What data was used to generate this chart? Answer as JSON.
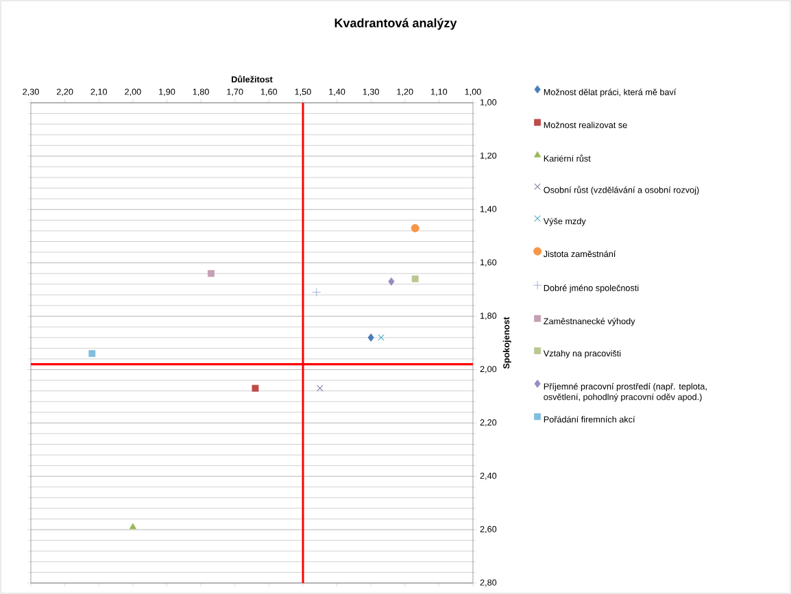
{
  "chart_data": {
    "type": "scatter",
    "title": "Kvadrantová analýzy",
    "xlabel": "Důležitost",
    "ylabel": "Spokojenost",
    "xlim": [
      2.3,
      1.0
    ],
    "ylim": [
      2.8,
      1.0
    ],
    "xticks": [
      {
        "value": 2.3,
        "label": "2,30"
      },
      {
        "value": 2.2,
        "label": "2,20"
      },
      {
        "value": 2.1,
        "label": "2,10"
      },
      {
        "value": 2.0,
        "label": "2,00"
      },
      {
        "value": 1.9,
        "label": "1,90"
      },
      {
        "value": 1.8,
        "label": "1,80"
      },
      {
        "value": 1.7,
        "label": "1,70"
      },
      {
        "value": 1.6,
        "label": "1,60"
      },
      {
        "value": 1.5,
        "label": "1,50"
      },
      {
        "value": 1.4,
        "label": "1,40"
      },
      {
        "value": 1.3,
        "label": "1,30"
      },
      {
        "value": 1.2,
        "label": "1,20"
      },
      {
        "value": 1.1,
        "label": "1,10"
      },
      {
        "value": 1.0,
        "label": "1,00"
      }
    ],
    "yticks": [
      {
        "value": 1.0,
        "label": "1,00"
      },
      {
        "value": 1.2,
        "label": "1,20"
      },
      {
        "value": 1.4,
        "label": "1,40"
      },
      {
        "value": 1.6,
        "label": "1,60"
      },
      {
        "value": 1.8,
        "label": "1,80"
      },
      {
        "value": 2.0,
        "label": "2,00"
      },
      {
        "value": 2.2,
        "label": "2,20"
      },
      {
        "value": 2.4,
        "label": "2,40"
      },
      {
        "value": 2.6,
        "label": "2,60"
      },
      {
        "value": 2.8,
        "label": "2,80"
      }
    ],
    "grid": "y",
    "legend": "right",
    "ref_lines": [
      {
        "axis": "x",
        "value": 1.5,
        "color": "#ff0000"
      },
      {
        "axis": "y",
        "value": 1.98,
        "color": "#ff0000"
      }
    ],
    "series": [
      {
        "name": "Možnost dělat práci, která mě baví",
        "color": "#4a7ebb",
        "marker": "diamond",
        "x": [
          1.3
        ],
        "values": [
          1.88
        ]
      },
      {
        "name": "Možnost realizovat se",
        "color": "#be4b48",
        "marker": "square",
        "x": [
          1.64
        ],
        "values": [
          2.07
        ]
      },
      {
        "name": "Kariérní růst",
        "color": "#98b954",
        "marker": "triangle",
        "x": [
          2.0
        ],
        "values": [
          2.59
        ]
      },
      {
        "name": "Osobní růst (vzdělávání a osobní rozvoj)",
        "color": "#7f7f9f",
        "marker": "cross",
        "x": [
          1.45
        ],
        "values": [
          2.07
        ]
      },
      {
        "name": "Výše mzdy",
        "color": "#4bacc6",
        "marker": "cross",
        "x": [
          1.27
        ],
        "values": [
          1.88
        ]
      },
      {
        "name": "Jistota zaměstnání",
        "color": "#f79646",
        "marker": "circle",
        "x": [
          1.17
        ],
        "values": [
          1.47
        ]
      },
      {
        "name": "Dobré jméno společnosti",
        "color": "#8c9bd0",
        "marker": "plus",
        "x": [
          1.46
        ],
        "values": [
          1.71
        ]
      },
      {
        "name": "Zaměstnanecké výhody",
        "color": "#c4a0b4",
        "marker": "square",
        "x": [
          1.77
        ],
        "values": [
          1.64
        ]
      },
      {
        "name": "Vztahy na pracovišti",
        "color": "#b8c890",
        "marker": "square",
        "x": [
          1.17
        ],
        "values": [
          1.66
        ]
      },
      {
        "name": "Příjemné pracovní prostředí (např. teplota, osvětlení, pohodlný pracovní oděv apod.)",
        "color": "#9a8ac2",
        "marker": "diamond",
        "x": [
          1.24
        ],
        "values": [
          1.67
        ]
      },
      {
        "name": "Pořádání firemních akcí",
        "color": "#7fbfdc",
        "marker": "square",
        "x": [
          2.12
        ],
        "values": [
          1.94
        ]
      }
    ]
  }
}
